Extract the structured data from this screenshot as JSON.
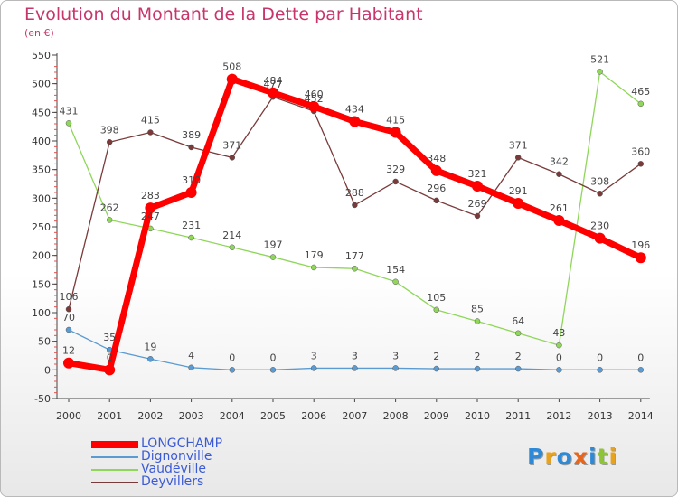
{
  "title": "Evolution du Montant de la Dette par Habitant",
  "subtitle": "(en €)",
  "logo": {
    "text": "Proxiti",
    "letters": [
      {
        "ch": "P",
        "color": "#2e8ad6"
      },
      {
        "ch": "r",
        "color": "#e8a21c"
      },
      {
        "ch": "o",
        "color": "#2e8ad6"
      },
      {
        "ch": "x",
        "color": "#e8661c"
      },
      {
        "ch": "i",
        "color": "#2e8ad6"
      },
      {
        "ch": "t",
        "color": "#8fc43a"
      },
      {
        "ch": "i",
        "color": "#e8a21c"
      }
    ]
  },
  "chart_data": {
    "type": "line",
    "title": "Evolution du Montant de la Dette par Habitant",
    "ylabel": "(en €)",
    "xlabel": "",
    "x": [
      "2000",
      "2001",
      "2002",
      "2003",
      "2004",
      "2005",
      "2006",
      "2007",
      "2008",
      "2009",
      "2010",
      "2011",
      "2012",
      "2013",
      "2014"
    ],
    "ylim": [
      -50,
      550
    ],
    "yticks": [
      -50,
      0,
      50,
      100,
      150,
      200,
      250,
      300,
      350,
      400,
      450,
      500,
      550
    ],
    "grid": false,
    "legend_position": "bottom-left",
    "series": [
      {
        "name": "LONGCHAMP",
        "color": "#ff0000",
        "width": 7,
        "marker": 6,
        "values": [
          12,
          0,
          283,
          310,
          508,
          484,
          460,
          434,
          415,
          348,
          321,
          291,
          261,
          230,
          196
        ],
        "labels": [
          "12",
          "0",
          "283",
          "310",
          "508",
          "484",
          "460",
          "434",
          "415",
          "348",
          "321",
          "291",
          "261",
          "230",
          "196"
        ]
      },
      {
        "name": "Dignonville",
        "color": "#5b9bd1",
        "width": 1.3,
        "marker": 3,
        "values": [
          70,
          35,
          19,
          4,
          0,
          0,
          3,
          3,
          3,
          2,
          2,
          2,
          0,
          0,
          0
        ],
        "labels": [
          "70",
          "35",
          "19",
          "4",
          "0",
          "0",
          "3",
          "3",
          "3",
          "2",
          "2",
          "2",
          "0",
          "0",
          "0"
        ]
      },
      {
        "name": "Vaudéville",
        "color": "#8fd65a",
        "width": 1.3,
        "marker": 3,
        "values": [
          431,
          262,
          247,
          231,
          214,
          197,
          179,
          177,
          154,
          105,
          85,
          64,
          43,
          521,
          465
        ],
        "labels": [
          "431",
          "262",
          "247",
          "231",
          "214",
          "197",
          "179",
          "177",
          "154",
          "105",
          "85",
          "64",
          "43",
          "521",
          "465"
        ]
      },
      {
        "name": "Deyvillers",
        "color": "#7a3a3a",
        "width": 1.3,
        "marker": 3,
        "values": [
          106,
          398,
          415,
          389,
          371,
          477,
          452,
          288,
          329,
          296,
          269,
          371,
          342,
          308,
          360
        ],
        "labels": [
          "106",
          "398",
          "415",
          "389",
          "371",
          "477",
          "452",
          "288",
          "329",
          "296",
          "269",
          "371",
          "342",
          "308",
          "360"
        ]
      }
    ]
  }
}
